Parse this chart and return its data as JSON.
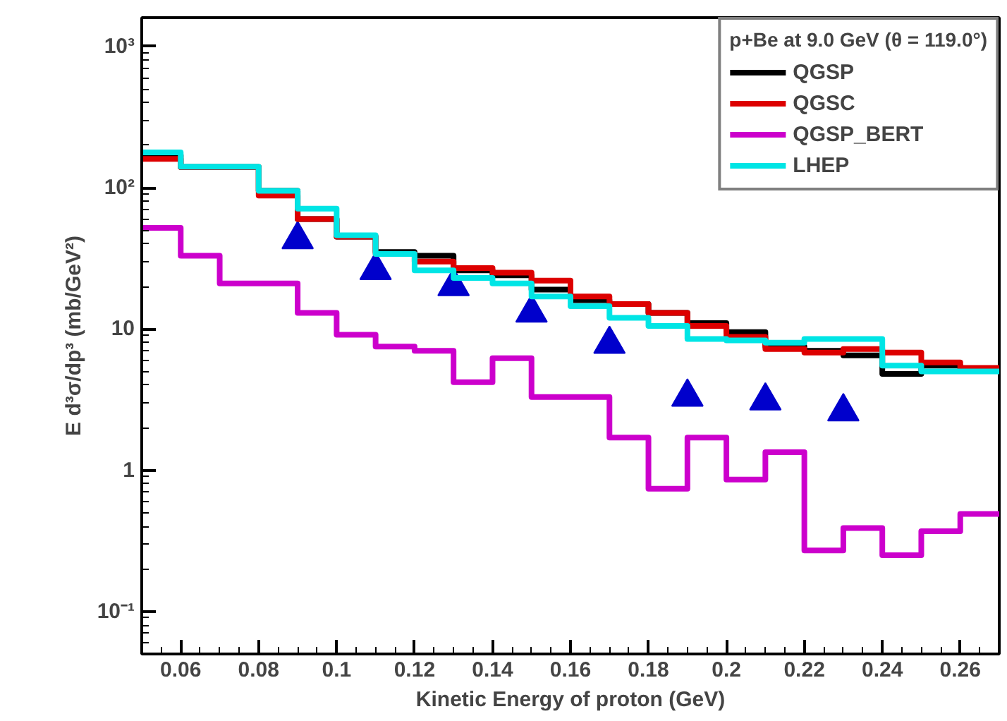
{
  "chart_data": {
    "type": "histogram",
    "xlabel": "Kinetic Energy of proton (GeV)",
    "ylabel": "E d³σ/dp³ (mb/GeV²)",
    "legend_title": "p+Be at 9.0 GeV (θ = 119.0°)",
    "bins": [
      0.05,
      0.06,
      0.07,
      0.08,
      0.09,
      0.1,
      0.11,
      0.12,
      0.13,
      0.14,
      0.15,
      0.16,
      0.17,
      0.18,
      0.19,
      0.2,
      0.21,
      0.22,
      0.23,
      0.24,
      0.25,
      0.26,
      0.27
    ],
    "series": [
      {
        "name": "QGSP",
        "color": "#000000",
        "values": [
          170,
          140,
          140,
          95,
          60,
          45,
          35,
          33,
          26,
          24,
          19,
          16,
          15,
          13,
          11,
          9.5,
          7.5,
          7,
          6.5,
          4.8,
          5.5,
          5.2
        ]
      },
      {
        "name": "QGSC",
        "color": "#dd0000",
        "values": [
          160,
          140,
          140,
          88,
          60,
          45,
          34,
          30,
          27,
          25,
          22,
          17,
          15,
          13,
          10.5,
          8.8,
          7.2,
          6.8,
          7.2,
          6.8,
          5.8,
          5.3
        ]
      },
      {
        "name": "QGSP_BERT",
        "color": "#cc00cc",
        "values": [
          52,
          33,
          21,
          21,
          13,
          9.1,
          7.5,
          7.0,
          4.2,
          6.2,
          3.3,
          3.3,
          1.7,
          0.74,
          1.7,
          0.86,
          1.34,
          0.27,
          0.39,
          0.25,
          0.37,
          0.49
        ]
      },
      {
        "name": "LHEP",
        "color": "#00e5e5",
        "values": [
          178,
          141,
          141,
          95,
          71,
          46,
          34,
          26,
          23,
          21,
          17,
          14.5,
          12,
          10.5,
          8.5,
          8.3,
          8,
          8.5,
          8.5,
          5.5,
          5,
          5
        ]
      },
      {
        "type": "scatter",
        "color": "#0000cc",
        "marker": "triangle",
        "x": [
          0.09,
          0.11,
          0.13,
          0.15,
          0.17,
          0.19,
          0.21,
          0.23
        ],
        "values": [
          43,
          26,
          20,
          13,
          7.8,
          3.3,
          3.1,
          2.6
        ]
      }
    ],
    "xlim": [
      0.05,
      0.27
    ],
    "ylim": [
      0.05,
      1600
    ],
    "log": "y",
    "xticks": [
      0.06,
      0.08,
      0.1,
      0.12,
      0.14,
      0.16,
      0.18,
      0.2,
      0.22,
      0.24,
      0.26
    ],
    "yticks": [
      {
        "value": 0.1,
        "label": "10⁻¹"
      },
      1,
      10,
      {
        "value": 100,
        "label": "10²"
      },
      {
        "value": 1000,
        "label": "10³"
      }
    ],
    "grid": false,
    "legend": "top right"
  }
}
